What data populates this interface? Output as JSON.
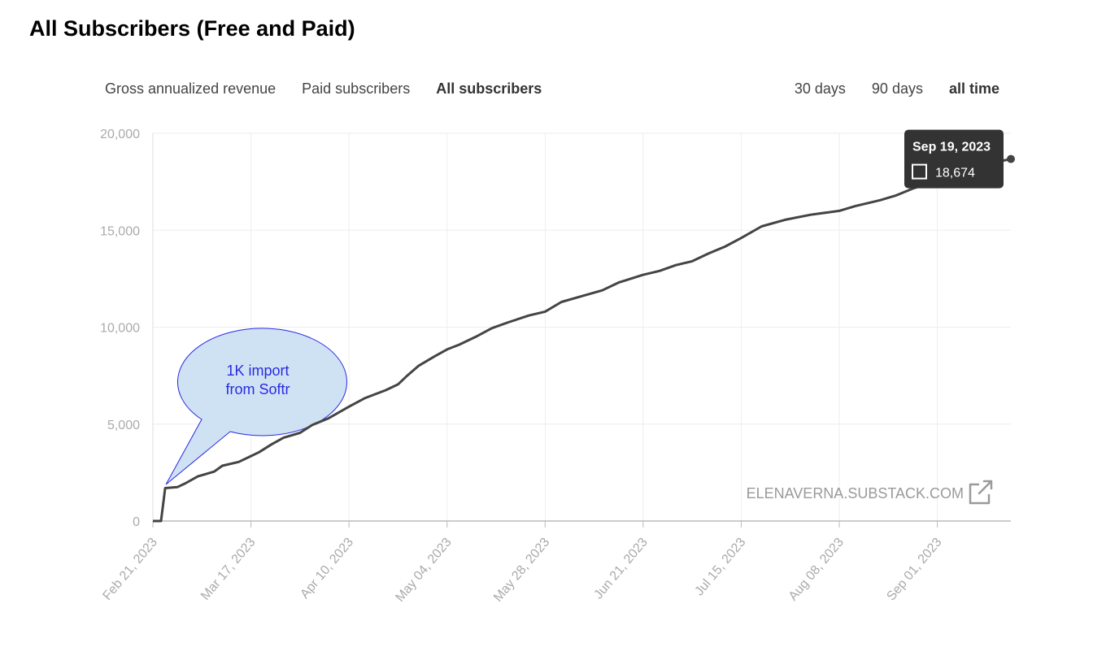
{
  "page": {
    "title": "All Subscribers (Free and Paid)"
  },
  "metric_tabs": [
    {
      "label": "Gross annualized revenue",
      "active": false
    },
    {
      "label": "Paid subscribers",
      "active": false
    },
    {
      "label": "All subscribers",
      "active": true
    }
  ],
  "range_tabs": [
    {
      "label": "30 days",
      "active": false
    },
    {
      "label": "90 days",
      "active": false
    },
    {
      "label": "all time",
      "active": true
    }
  ],
  "tooltip": {
    "date": "Sep 19, 2023",
    "value_label": "18,674",
    "icon": "square-checkbox-icon"
  },
  "watermark": {
    "text": "ELENAVERNA.SUBSTACK.COM",
    "icon": "external-link-icon"
  },
  "callout": {
    "lines": [
      "1K import",
      "from Softr"
    ],
    "fill": "#cfe2f3",
    "stroke": "#2a2ae0"
  },
  "colors": {
    "line": "#444444",
    "grid": "#eeeeee",
    "tooltip_bg": "#333333"
  },
  "chart_data": {
    "type": "line",
    "title": "All Subscribers (Free and Paid)",
    "ylim": [
      0,
      20000
    ],
    "yticks": [
      0,
      5000,
      10000,
      15000,
      20000
    ],
    "ytick_labels": [
      "0",
      "5,000",
      "10,000",
      "15,000",
      "20,000"
    ],
    "xlim": [
      "2023-02-21",
      "2023-09-19"
    ],
    "xticks": [
      {
        "date": "2023-02-21",
        "label": "Feb 21, 2023"
      },
      {
        "date": "2023-03-17",
        "label": "Mar 17, 2023"
      },
      {
        "date": "2023-04-10",
        "label": "Apr 10, 2023"
      },
      {
        "date": "2023-05-04",
        "label": "May 04, 2023"
      },
      {
        "date": "2023-05-28",
        "label": "May 28, 2023"
      },
      {
        "date": "2023-06-21",
        "label": "Jun 21, 2023"
      },
      {
        "date": "2023-07-15",
        "label": "Jul 15, 2023"
      },
      {
        "date": "2023-08-08",
        "label": "Aug 08, 2023"
      },
      {
        "date": "2023-09-01",
        "label": "Sep 01, 2023"
      }
    ],
    "grid": true,
    "legend": "none",
    "series": [
      {
        "points": [
          [
            "2023-02-21",
            0
          ],
          [
            "2023-02-23",
            0
          ],
          [
            "2023-02-24",
            1700
          ],
          [
            "2023-02-27",
            1750
          ],
          [
            "2023-03-01",
            1950
          ],
          [
            "2023-03-04",
            2300
          ],
          [
            "2023-03-08",
            2550
          ],
          [
            "2023-03-10",
            2850
          ],
          [
            "2023-03-14",
            3050
          ],
          [
            "2023-03-17",
            3350
          ],
          [
            "2023-03-19",
            3550
          ],
          [
            "2023-03-22",
            3950
          ],
          [
            "2023-03-25",
            4300
          ],
          [
            "2023-03-29",
            4550
          ],
          [
            "2023-04-01",
            4950
          ],
          [
            "2023-04-05",
            5300
          ],
          [
            "2023-04-10",
            5900
          ],
          [
            "2023-04-14",
            6350
          ],
          [
            "2023-04-19",
            6750
          ],
          [
            "2023-04-22",
            7050
          ],
          [
            "2023-04-24",
            7450
          ],
          [
            "2023-04-27",
            8000
          ],
          [
            "2023-05-01",
            8500
          ],
          [
            "2023-05-04",
            8850
          ],
          [
            "2023-05-07",
            9100
          ],
          [
            "2023-05-11",
            9500
          ],
          [
            "2023-05-15",
            9950
          ],
          [
            "2023-05-19",
            10250
          ],
          [
            "2023-05-24",
            10600
          ],
          [
            "2023-05-28",
            10800
          ],
          [
            "2023-06-01",
            11300
          ],
          [
            "2023-06-06",
            11600
          ],
          [
            "2023-06-11",
            11900
          ],
          [
            "2023-06-15",
            12300
          ],
          [
            "2023-06-21",
            12700
          ],
          [
            "2023-06-25",
            12900
          ],
          [
            "2023-06-29",
            13200
          ],
          [
            "2023-07-03",
            13400
          ],
          [
            "2023-07-07",
            13800
          ],
          [
            "2023-07-11",
            14150
          ],
          [
            "2023-07-15",
            14600
          ],
          [
            "2023-07-20",
            15200
          ],
          [
            "2023-07-26",
            15550
          ],
          [
            "2023-08-01",
            15800
          ],
          [
            "2023-08-08",
            16000
          ],
          [
            "2023-08-12",
            16250
          ],
          [
            "2023-08-18",
            16550
          ],
          [
            "2023-08-22",
            16800
          ],
          [
            "2023-08-26",
            17150
          ],
          [
            "2023-09-01",
            17550
          ],
          [
            "2023-09-06",
            17850
          ],
          [
            "2023-09-11",
            18200
          ],
          [
            "2023-09-15",
            18500
          ],
          [
            "2023-09-19",
            18674
          ]
        ]
      }
    ],
    "annotations": [
      {
        "text": "1K import from Softr",
        "date": "2023-02-24",
        "value": 1700
      }
    ]
  }
}
